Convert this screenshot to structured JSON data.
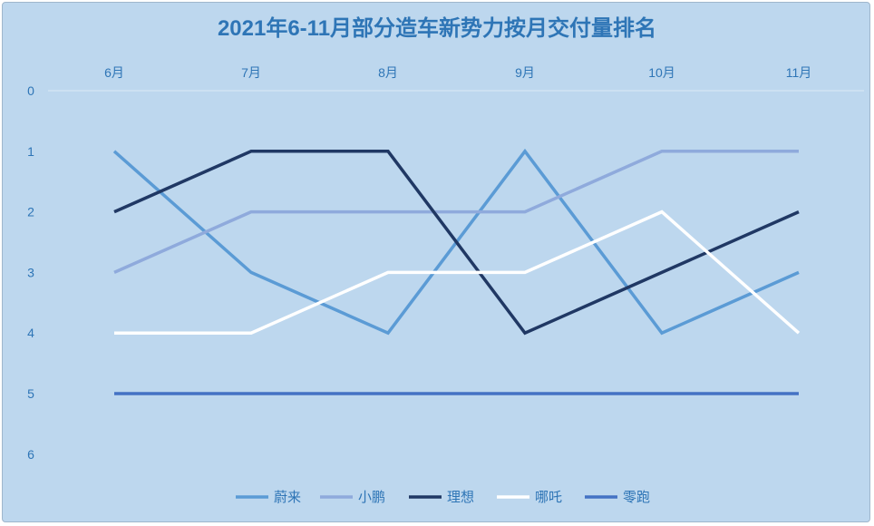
{
  "chart_data": {
    "type": "line",
    "title": "2021年6-11月部分造车新势力按月交付量排名",
    "xlabel": "",
    "ylabel": "",
    "categories": [
      "6月",
      "7月",
      "8月",
      "9月",
      "10月",
      "11月"
    ],
    "yticks": [
      "0",
      "1",
      "2",
      "3",
      "4",
      "5",
      "6"
    ],
    "ylim": [
      0,
      6
    ],
    "y_reversed": true,
    "x_axis_position": "top",
    "grid": false,
    "legend_position": "bottom",
    "series": [
      {
        "name": "蔚来",
        "values": [
          1,
          3,
          4,
          1,
          4,
          3
        ],
        "color": "#5b9bd5"
      },
      {
        "name": "小鹏",
        "values": [
          3,
          2,
          2,
          2,
          1,
          1
        ],
        "color": "#8faadc"
      },
      {
        "name": "理想",
        "values": [
          2,
          1,
          1,
          4,
          3,
          2
        ],
        "color": "#203864"
      },
      {
        "name": "哪吒",
        "values": [
          4,
          4,
          3,
          3,
          2,
          4
        ],
        "color": "#ffffff"
      },
      {
        "name": "零跑",
        "values": [
          5,
          5,
          5,
          5,
          5,
          5
        ],
        "color": "#4472c4"
      }
    ]
  }
}
